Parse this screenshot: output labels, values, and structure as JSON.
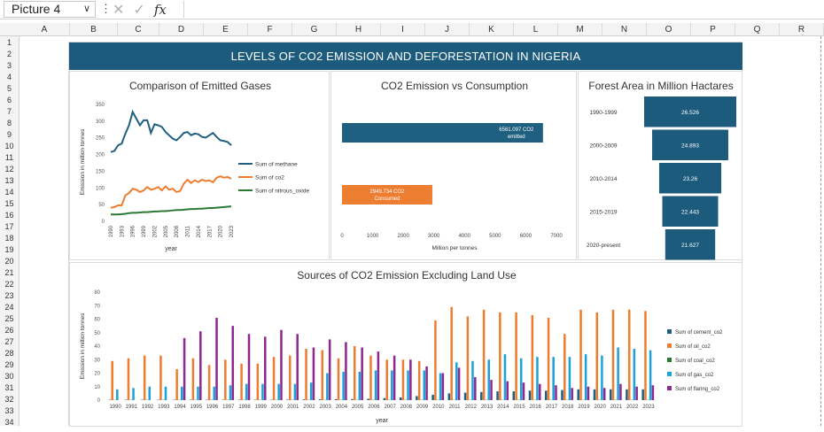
{
  "formula_bar": {
    "name_box": "Picture 4",
    "chevron": "∨",
    "separator": "⋮",
    "cancel": "✕",
    "enter": "✓",
    "fx": "fx",
    "content": ""
  },
  "columns": [
    "A",
    "B",
    "C",
    "D",
    "E",
    "F",
    "G",
    "H",
    "I",
    "J",
    "K",
    "L",
    "M",
    "N",
    "O",
    "P",
    "Q",
    "R"
  ],
  "rows": [
    "1",
    "2",
    "3",
    "4",
    "5",
    "6",
    "7",
    "8",
    "9",
    "10",
    "11",
    "12",
    "13",
    "14",
    "15",
    "16",
    "17",
    "18",
    "19",
    "20",
    "21",
    "22",
    "23",
    "24",
    "25",
    "26",
    "27",
    "28",
    "29",
    "30",
    "31",
    "32",
    "33",
    "34"
  ],
  "dashboard": {
    "title": "LEVELS OF CO2 EMISSION AND DEFORESTATION IN NIGERIA",
    "colors": {
      "title_bg": "#1d5b7d",
      "methane": "#1f5f7f",
      "co2": "#ed7d31",
      "nitrous": "#2a7a33",
      "cement": "#1f5f7f",
      "oil": "#ed7d31",
      "coal": "#2a7a33",
      "gas": "#1ea1d9",
      "flaring": "#8e2a8f"
    }
  },
  "chart_data": [
    {
      "type": "line",
      "title": "Comparison of Emitted Gases",
      "xlabel": "year",
      "ylabel": "Emission in million tonnes",
      "ylim": [
        0,
        350
      ],
      "yticks": [
        "0",
        "50",
        "100",
        "150",
        "200",
        "250",
        "300",
        "350"
      ],
      "x": [
        1990,
        1991,
        1992,
        1993,
        1994,
        1995,
        1996,
        1997,
        1998,
        1999,
        2000,
        2001,
        2002,
        2003,
        2004,
        2005,
        2006,
        2007,
        2008,
        2009,
        2010,
        2011,
        2012,
        2013,
        2014,
        2015,
        2016,
        2017,
        2018,
        2019,
        2020,
        2021,
        2022,
        2023
      ],
      "xtick_labels": [
        "1990",
        "1993",
        "1996",
        "1999",
        "2002",
        "2005",
        "2008",
        "2011",
        "2014",
        "2017",
        "2020",
        "2023"
      ],
      "series": [
        {
          "name": "Sum of methane",
          "values": [
            205,
            208,
            225,
            230,
            260,
            285,
            325,
            305,
            285,
            300,
            300,
            262,
            288,
            285,
            280,
            265,
            255,
            245,
            240,
            250,
            262,
            265,
            255,
            260,
            258,
            250,
            248,
            255,
            262,
            250,
            240,
            238,
            235,
            225
          ]
        },
        {
          "name": "Sum of co2",
          "values": [
            38,
            40,
            45,
            45,
            75,
            82,
            95,
            92,
            85,
            90,
            100,
            92,
            95,
            100,
            90,
            102,
            92,
            95,
            85,
            88,
            110,
            122,
            112,
            120,
            115,
            122,
            118,
            120,
            114,
            128,
            132,
            128,
            130,
            125
          ]
        },
        {
          "name": "Sum of nitrous_oxide",
          "values": [
            18,
            18,
            18,
            19,
            20,
            22,
            23,
            23,
            24,
            25,
            25,
            26,
            27,
            27,
            28,
            28,
            29,
            30,
            31,
            31,
            32,
            33,
            34,
            34,
            35,
            35,
            36,
            37,
            37,
            38,
            39,
            40,
            41,
            42
          ]
        }
      ]
    },
    {
      "type": "bar",
      "orientation": "horizontal",
      "title": "CO2 Emission vs Consumption",
      "xlabel": "Million per tonnes",
      "xlim": [
        0,
        7000
      ],
      "xticks": [
        "0",
        "1000",
        "2000",
        "3000",
        "4000",
        "5000",
        "6000",
        "7000"
      ],
      "categories": [
        "CO2 emitted",
        "CO2 Consumed"
      ],
      "values": [
        6561.097,
        2949.734
      ],
      "data_labels": [
        [
          "6561.097 CO2",
          "emitted"
        ],
        [
          "2949.734 CO2",
          "Consumed"
        ]
      ]
    },
    {
      "type": "bar",
      "orientation": "horizontal",
      "title": "Forest Area in Million Hactares",
      "categories": [
        "1990-1999",
        "2000-2009",
        "2010-2014",
        "2015-2019",
        "2020-present"
      ],
      "values": [
        26.526,
        24.893,
        23.26,
        22.443,
        21.627
      ],
      "data_labels": [
        "26.526",
        "24.893",
        "23.26",
        "22.443",
        "21.627"
      ]
    },
    {
      "type": "bar",
      "title": "Sources of CO2 Emission Excluding Land Use",
      "xlabel": "year",
      "ylabel": "Emission in million tonnes",
      "ylim": [
        0,
        80
      ],
      "yticks": [
        "0",
        "10",
        "20",
        "30",
        "40",
        "50",
        "60",
        "70",
        "80"
      ],
      "categories": [
        "1990",
        "1991",
        "1992",
        "1993",
        "1994",
        "1995",
        "1996",
        "1997",
        "1998",
        "1999",
        "2000",
        "2001",
        "2002",
        "2003",
        "2004",
        "2005",
        "2006",
        "2007",
        "2008",
        "2009",
        "2010",
        "2011",
        "2012",
        "2013",
        "2014",
        "2015",
        "2016",
        "2017",
        "2018",
        "2019",
        "2020",
        "2021",
        "2022",
        "2023"
      ],
      "series": [
        {
          "name": "Sum of cement_co2",
          "values": [
            0.3,
            0.3,
            0.3,
            0.3,
            0.3,
            0.3,
            0.3,
            0.3,
            0.3,
            0.3,
            0.3,
            0.4,
            0.5,
            0.6,
            0.7,
            0.8,
            1,
            1.5,
            2,
            3,
            4,
            5,
            5.5,
            6,
            6.5,
            6.5,
            7,
            7,
            7.5,
            8,
            8,
            8,
            8,
            8
          ]
        },
        {
          "name": "Sum of oil_co2",
          "values": [
            29,
            31,
            33,
            33,
            23,
            31,
            26,
            30,
            27,
            27,
            32,
            33,
            38,
            37,
            31,
            40,
            33,
            30,
            30,
            29,
            59,
            69,
            62,
            67,
            65,
            65,
            63,
            61,
            49,
            67,
            65,
            67,
            67,
            66
          ]
        },
        {
          "name": "Sum of coal_co2",
          "values": [
            0.2,
            0.2,
            0.2,
            0.2,
            0.2,
            0.2,
            0.2,
            0.2,
            0.2,
            0.2,
            0.2,
            0.2,
            0.2,
            0.2,
            0.2,
            0.2,
            0.2,
            0.2,
            0.2,
            0.2,
            0.2,
            0.2,
            0.2,
            0.2,
            0.2,
            0.2,
            0.2,
            0.2,
            0.2,
            0.2,
            0.2,
            0.2,
            0.2,
            0.2
          ]
        },
        {
          "name": "Sum of gas_co2",
          "values": [
            8,
            9,
            10,
            10,
            10,
            10,
            10,
            11,
            12,
            12,
            12,
            12,
            13,
            20,
            21,
            21,
            22,
            22,
            22,
            22,
            20,
            28,
            29,
            30,
            34,
            31,
            32,
            32,
            32,
            34,
            33,
            39,
            38,
            37
          ]
        },
        {
          "name": "Sum of flaring_co2",
          "values": [
            0,
            0,
            0,
            0,
            46,
            51,
            61,
            55,
            49,
            47,
            52,
            49,
            39,
            45,
            43,
            39,
            36,
            33,
            30,
            25,
            20,
            24,
            17,
            15,
            14,
            13,
            12,
            11,
            9,
            10,
            9,
            12,
            10,
            11
          ]
        }
      ]
    }
  ]
}
